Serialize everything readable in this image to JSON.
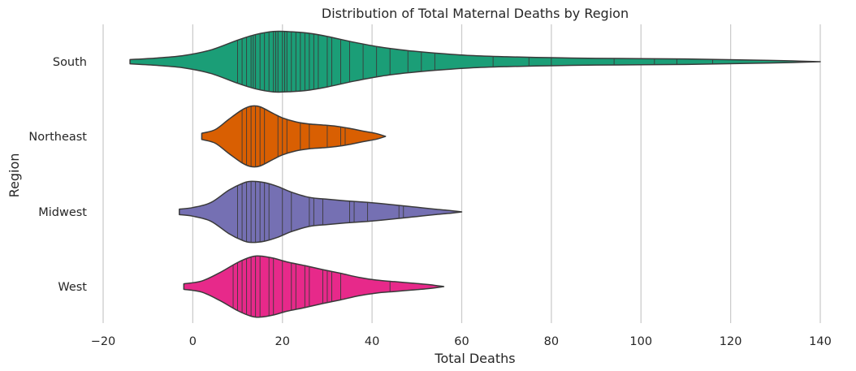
{
  "chart_data": {
    "type": "violin",
    "orientation": "horizontal",
    "title": "Distribution of Total Maternal Deaths by Region",
    "xlabel": "Total Deaths",
    "ylabel": "Region",
    "xlim": [
      -20,
      140
    ],
    "xticks": [
      -20,
      0,
      20,
      40,
      60,
      80,
      100,
      120,
      140
    ],
    "grid": "vertical",
    "inner": "stick",
    "categories": [
      "South",
      "Northeast",
      "Midwest",
      "West"
    ],
    "series": [
      {
        "category": "South",
        "color": "#1b9e77",
        "values": [
          10,
          11,
          12,
          13,
          13.5,
          14,
          15,
          16,
          17,
          18,
          18.5,
          19,
          20,
          20.5,
          21,
          22,
          23,
          24,
          25,
          26,
          27,
          28,
          30,
          31,
          33,
          35,
          38,
          41,
          44,
          48,
          51,
          54,
          67,
          75,
          80,
          94,
          103,
          108,
          116
        ],
        "density_points": [
          [
            -14,
            0.07
          ],
          [
            -8,
            0.12
          ],
          [
            -2,
            0.2
          ],
          [
            4,
            0.38
          ],
          [
            10,
            0.7
          ],
          [
            14,
            0.88
          ],
          [
            18,
            0.98
          ],
          [
            22,
            0.97
          ],
          [
            26,
            0.92
          ],
          [
            30,
            0.82
          ],
          [
            36,
            0.63
          ],
          [
            42,
            0.47
          ],
          [
            48,
            0.36
          ],
          [
            54,
            0.28
          ],
          [
            62,
            0.2
          ],
          [
            70,
            0.16
          ],
          [
            80,
            0.13
          ],
          [
            90,
            0.11
          ],
          [
            100,
            0.1
          ],
          [
            110,
            0.09
          ],
          [
            118,
            0.07
          ],
          [
            126,
            0.05
          ],
          [
            134,
            0.025
          ],
          [
            140,
            0.0
          ]
        ]
      },
      {
        "category": "Northeast",
        "color": "#d95f02",
        "values": [
          11,
          12,
          13,
          14,
          15,
          16,
          19,
          20,
          21,
          24,
          26,
          30,
          33,
          34
        ],
        "density_points": [
          [
            2,
            0.1
          ],
          [
            5,
            0.22
          ],
          [
            8,
            0.55
          ],
          [
            11,
            0.86
          ],
          [
            13,
            0.98
          ],
          [
            15,
            0.96
          ],
          [
            18,
            0.74
          ],
          [
            20,
            0.6
          ],
          [
            23,
            0.47
          ],
          [
            26,
            0.4
          ],
          [
            29,
            0.37
          ],
          [
            32,
            0.33
          ],
          [
            35,
            0.26
          ],
          [
            38,
            0.17
          ],
          [
            41,
            0.09
          ],
          [
            43,
            0.0
          ]
        ]
      },
      {
        "category": "Midwest",
        "color": "#7570b3",
        "values": [
          10,
          11,
          12,
          13,
          14,
          15,
          16,
          17,
          20,
          22,
          26,
          27,
          29,
          35,
          36,
          39,
          46,
          47
        ],
        "density_points": [
          [
            -3,
            0.09
          ],
          [
            0,
            0.14
          ],
          [
            4,
            0.3
          ],
          [
            8,
            0.7
          ],
          [
            11,
            0.92
          ],
          [
            13,
            0.99
          ],
          [
            16,
            0.95
          ],
          [
            19,
            0.82
          ],
          [
            22,
            0.64
          ],
          [
            26,
            0.47
          ],
          [
            30,
            0.41
          ],
          [
            34,
            0.36
          ],
          [
            38,
            0.32
          ],
          [
            42,
            0.27
          ],
          [
            46,
            0.21
          ],
          [
            50,
            0.15
          ],
          [
            54,
            0.09
          ],
          [
            57,
            0.05
          ],
          [
            60,
            0.0
          ]
        ]
      },
      {
        "category": "West",
        "color": "#e7298a",
        "values": [
          9,
          10,
          11,
          12,
          13,
          14,
          15,
          17,
          18,
          20,
          22,
          23,
          25,
          26,
          29,
          30,
          31,
          33,
          44
        ],
        "density_points": [
          [
            -2,
            0.09
          ],
          [
            2,
            0.18
          ],
          [
            6,
            0.45
          ],
          [
            10,
            0.78
          ],
          [
            13,
            0.96
          ],
          [
            15,
            0.99
          ],
          [
            18,
            0.92
          ],
          [
            21,
            0.8
          ],
          [
            25,
            0.68
          ],
          [
            29,
            0.55
          ],
          [
            33,
            0.43
          ],
          [
            37,
            0.3
          ],
          [
            41,
            0.21
          ],
          [
            45,
            0.16
          ],
          [
            50,
            0.1
          ],
          [
            53,
            0.06
          ],
          [
            56,
            0.0
          ]
        ]
      }
    ]
  }
}
